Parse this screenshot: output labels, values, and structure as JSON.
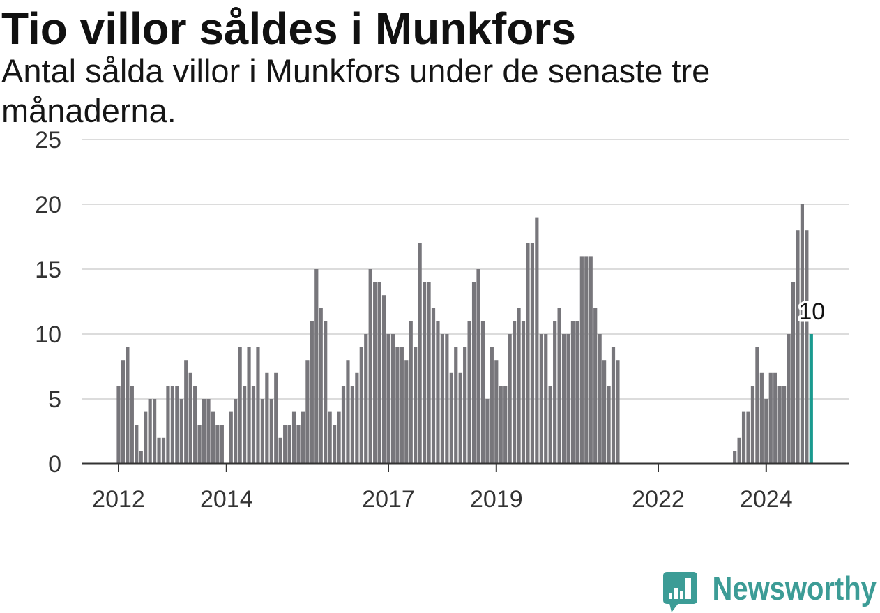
{
  "chart_data": {
    "type": "bar",
    "title": "Tio villor såldes i Munkfors",
    "subtitle": "Antal sålda villor i Munkfors under de senaste tre månaderna.",
    "x": [
      "2012-01",
      "2012-02",
      "2012-03",
      "2012-04",
      "2012-05",
      "2012-06",
      "2012-07",
      "2012-08",
      "2012-09",
      "2012-10",
      "2012-11",
      "2012-12",
      "2013-01",
      "2013-02",
      "2013-03",
      "2013-04",
      "2013-05",
      "2013-06",
      "2013-07",
      "2013-08",
      "2013-09",
      "2013-10",
      "2013-11",
      "2013-12",
      "2014-01",
      "2014-02",
      "2014-03",
      "2014-04",
      "2014-05",
      "2014-06",
      "2014-07",
      "2014-08",
      "2014-09",
      "2014-10",
      "2014-11",
      "2014-12",
      "2015-01",
      "2015-02",
      "2015-03",
      "2015-04",
      "2015-05",
      "2015-06",
      "2015-07",
      "2015-08",
      "2015-09",
      "2015-10",
      "2015-11",
      "2015-12",
      "2016-01",
      "2016-02",
      "2016-03",
      "2016-04",
      "2016-05",
      "2016-06",
      "2016-07",
      "2016-08",
      "2016-09",
      "2016-10",
      "2016-11",
      "2016-12",
      "2017-01",
      "2017-02",
      "2017-03",
      "2017-04",
      "2017-05",
      "2017-06",
      "2017-07",
      "2017-08",
      "2017-09",
      "2017-10",
      "2017-11",
      "2017-12",
      "2018-01",
      "2018-02",
      "2018-03",
      "2018-04",
      "2018-05",
      "2018-06",
      "2018-07",
      "2018-08",
      "2018-09",
      "2018-10",
      "2018-11",
      "2018-12",
      "2019-01",
      "2019-02",
      "2019-03",
      "2019-04",
      "2019-05",
      "2019-06",
      "2019-07",
      "2019-08",
      "2019-09",
      "2019-10",
      "2019-11",
      "2019-12",
      "2020-01",
      "2020-02",
      "2020-03",
      "2020-04",
      "2020-05",
      "2020-06",
      "2020-07",
      "2020-08",
      "2020-09",
      "2020-10",
      "2020-11",
      "2020-12",
      "2021-01",
      "2021-02",
      "2021-03",
      "2021-04",
      "2021-05",
      "2021-06",
      "2021-07",
      "2021-08",
      "2021-09",
      "2021-10",
      "2021-11",
      "2021-12",
      "2022-01",
      "2022-02",
      "2022-03",
      "2022-04",
      "2022-05",
      "2022-06",
      "2022-07",
      "2022-08",
      "2022-09",
      "2022-10",
      "2022-11",
      "2022-12",
      "2023-01",
      "2023-02",
      "2023-03",
      "2023-04",
      "2023-05",
      "2023-06",
      "2023-07",
      "2023-08",
      "2023-09",
      "2023-10",
      "2023-11",
      "2023-12",
      "2024-01",
      "2024-02",
      "2024-03",
      "2024-04",
      "2024-05",
      "2024-06",
      "2024-07",
      "2024-08",
      "2024-09",
      "2024-10",
      "2024-11"
    ],
    "values": [
      6,
      8,
      9,
      6,
      3,
      1,
      4,
      5,
      5,
      2,
      2,
      6,
      6,
      6,
      5,
      8,
      7,
      6,
      3,
      5,
      5,
      4,
      3,
      3,
      null,
      4,
      5,
      9,
      6,
      9,
      6,
      9,
      5,
      7,
      5,
      7,
      2,
      3,
      3,
      4,
      3,
      4,
      8,
      11,
      15,
      12,
      11,
      4,
      3,
      4,
      6,
      8,
      6,
      7,
      9,
      10,
      15,
      14,
      14,
      13,
      10,
      10,
      9,
      9,
      8,
      11,
      9,
      17,
      14,
      14,
      12,
      11,
      10,
      10,
      7,
      9,
      7,
      9,
      11,
      14,
      15,
      11,
      5,
      9,
      8,
      6,
      6,
      10,
      11,
      12,
      11,
      17,
      17,
      19,
      10,
      10,
      6,
      11,
      12,
      10,
      10,
      11,
      11,
      16,
      16,
      16,
      12,
      10,
      8,
      6,
      9,
      8,
      null,
      null,
      null,
      null,
      null,
      null,
      null,
      null,
      null,
      null,
      null,
      null,
      null,
      null,
      null,
      null,
      null,
      null,
      null,
      null,
      null,
      null,
      null,
      null,
      null,
      1,
      2,
      4,
      4,
      6,
      9,
      7,
      5,
      7,
      7,
      6,
      6,
      10,
      14,
      18,
      20,
      18,
      10
    ],
    "ylim": [
      0,
      25
    ],
    "y_ticks": [
      0,
      5,
      10,
      15,
      20,
      25
    ],
    "x_ticks": [
      "2012",
      "2014",
      "2017",
      "2019",
      "2022",
      "2024"
    ],
    "grid": true,
    "annotation": {
      "x": "2024-11",
      "y": 10,
      "text": "10"
    },
    "colors": {
      "bar": "#77767b",
      "highlight": "#1a9a8f",
      "grid": "#dcdcdc",
      "axis": "#333333"
    }
  },
  "brand": {
    "name": "Newsworthy",
    "icon": "newsworthy-logo-icon",
    "color": "#3c9c96"
  }
}
